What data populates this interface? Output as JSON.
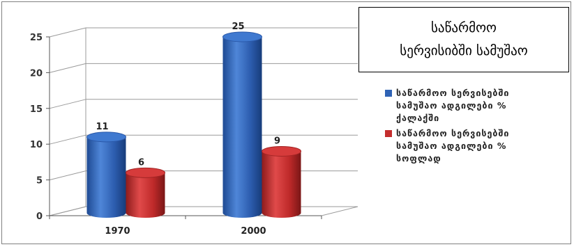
{
  "chart_data": {
    "type": "bar",
    "title": "საწარმოო\nსერვისიბში სამუშაო",
    "categories": [
      "1970",
      "2000"
    ],
    "series": [
      {
        "name": "საწარმოო სერვისებში სამუშაო ადგილები % ქალაქში",
        "values": [
          11,
          25
        ],
        "color": "#2f63b5"
      },
      {
        "name": "საწარმოო სერვისებში სამუშაო ადგილები % სოფლად",
        "values": [
          6,
          9
        ],
        "color": "#c42d2d"
      }
    ],
    "ylim": [
      0,
      25
    ],
    "yticks": [
      0,
      5,
      10,
      15,
      20,
      25
    ],
    "xlabel": "",
    "ylabel": "",
    "grid": true,
    "legend_position": "right",
    "three_d": true
  }
}
